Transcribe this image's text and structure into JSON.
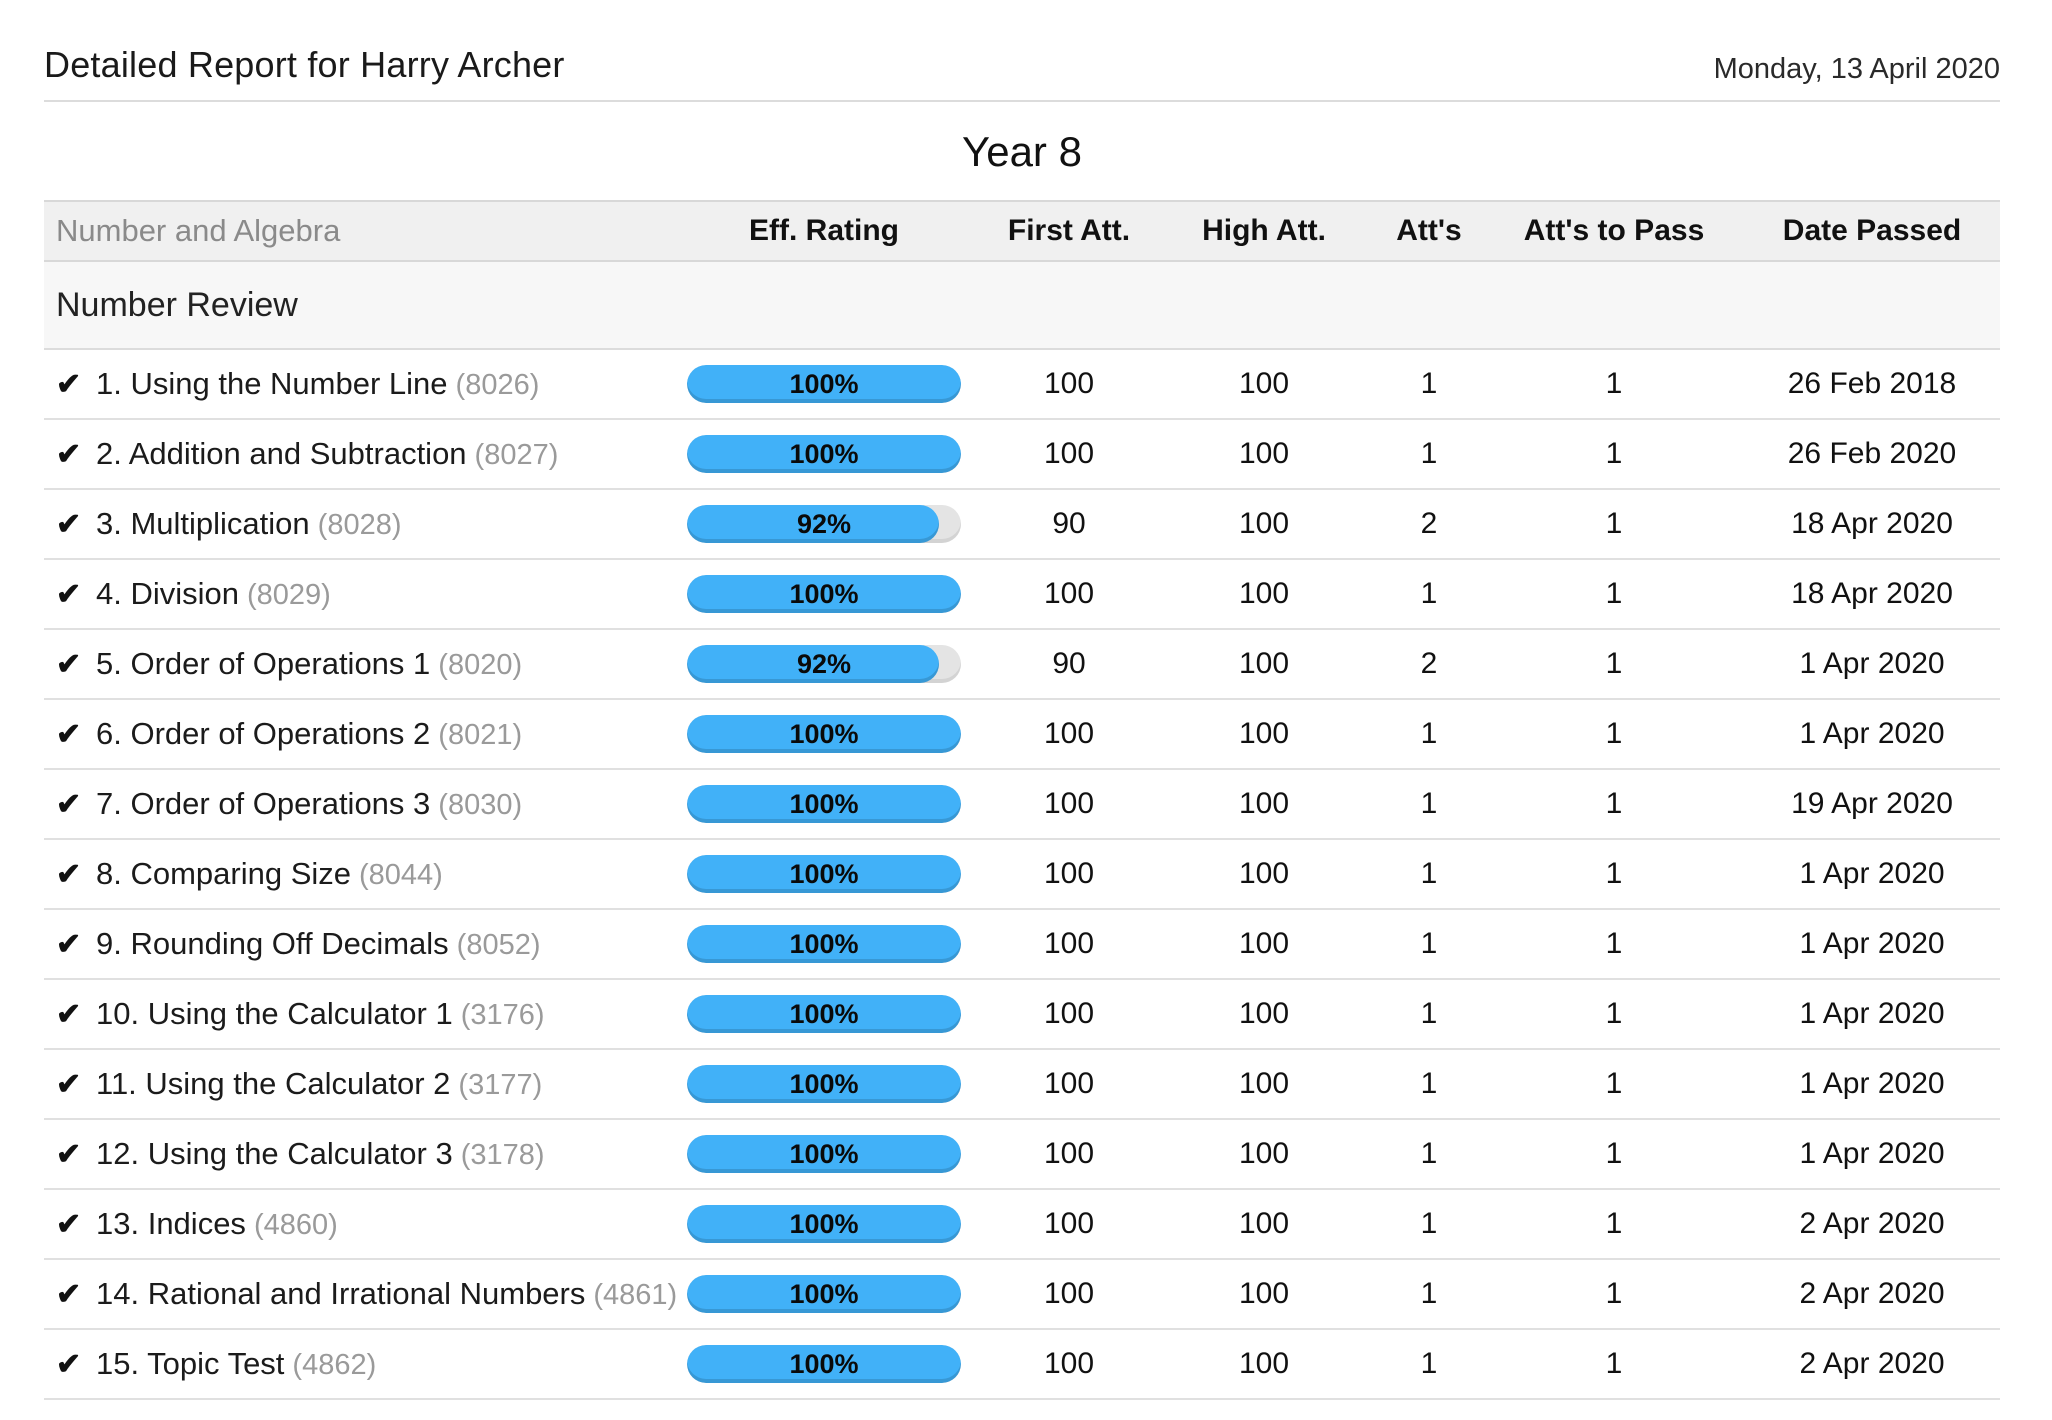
{
  "page": {
    "title": "Detailed Report for Harry Archer",
    "date": "Monday, 13 April 2020",
    "year_heading": "Year 8"
  },
  "icons": {
    "passed_check": "✔"
  },
  "colors": {
    "bar_fill": "#41b1f8",
    "bar_track": "#e4e4e4",
    "header_band": "#f0f0f0"
  },
  "table": {
    "category": "Number and Algebra",
    "columns": [
      "Eff. Rating",
      "First Att.",
      "High Att.",
      "Att's",
      "Att's to Pass",
      "Date Passed"
    ],
    "section": "Number Review",
    "rows": [
      {
        "label": "1. Using the Number Line",
        "code": "(8026)",
        "rating": 100,
        "rating_label": "100%",
        "first_att": "100",
        "high_att": "100",
        "atts": "1",
        "atts_to_pass": "1",
        "date_passed": "26 Feb 2018"
      },
      {
        "label": "2. Addition and Subtraction",
        "code": "(8027)",
        "rating": 100,
        "rating_label": "100%",
        "first_att": "100",
        "high_att": "100",
        "atts": "1",
        "atts_to_pass": "1",
        "date_passed": "26 Feb 2020"
      },
      {
        "label": "3. Multiplication",
        "code": "(8028)",
        "rating": 92,
        "rating_label": "92%",
        "first_att": "90",
        "high_att": "100",
        "atts": "2",
        "atts_to_pass": "1",
        "date_passed": "18 Apr 2020"
      },
      {
        "label": "4. Division",
        "code": "(8029)",
        "rating": 100,
        "rating_label": "100%",
        "first_att": "100",
        "high_att": "100",
        "atts": "1",
        "atts_to_pass": "1",
        "date_passed": "18 Apr 2020"
      },
      {
        "label": "5. Order of Operations 1",
        "code": "(8020)",
        "rating": 92,
        "rating_label": "92%",
        "first_att": "90",
        "high_att": "100",
        "atts": "2",
        "atts_to_pass": "1",
        "date_passed": "1 Apr 2020"
      },
      {
        "label": "6. Order of Operations 2",
        "code": "(8021)",
        "rating": 100,
        "rating_label": "100%",
        "first_att": "100",
        "high_att": "100",
        "atts": "1",
        "atts_to_pass": "1",
        "date_passed": "1 Apr 2020"
      },
      {
        "label": "7. Order of Operations 3",
        "code": "(8030)",
        "rating": 100,
        "rating_label": "100%",
        "first_att": "100",
        "high_att": "100",
        "atts": "1",
        "atts_to_pass": "1",
        "date_passed": "19 Apr 2020"
      },
      {
        "label": "8. Comparing Size",
        "code": "(8044)",
        "rating": 100,
        "rating_label": "100%",
        "first_att": "100",
        "high_att": "100",
        "atts": "1",
        "atts_to_pass": "1",
        "date_passed": "1 Apr 2020"
      },
      {
        "label": "9. Rounding Off Decimals",
        "code": "(8052)",
        "rating": 100,
        "rating_label": "100%",
        "first_att": "100",
        "high_att": "100",
        "atts": "1",
        "atts_to_pass": "1",
        "date_passed": "1 Apr 2020"
      },
      {
        "label": "10. Using the Calculator 1",
        "code": "(3176)",
        "rating": 100,
        "rating_label": "100%",
        "first_att": "100",
        "high_att": "100",
        "atts": "1",
        "atts_to_pass": "1",
        "date_passed": "1 Apr 2020"
      },
      {
        "label": "11. Using the Calculator 2",
        "code": "(3177)",
        "rating": 100,
        "rating_label": "100%",
        "first_att": "100",
        "high_att": "100",
        "atts": "1",
        "atts_to_pass": "1",
        "date_passed": "1 Apr 2020"
      },
      {
        "label": "12. Using the Calculator 3",
        "code": "(3178)",
        "rating": 100,
        "rating_label": "100%",
        "first_att": "100",
        "high_att": "100",
        "atts": "1",
        "atts_to_pass": "1",
        "date_passed": "1 Apr 2020"
      },
      {
        "label": "13. Indices",
        "code": "(4860)",
        "rating": 100,
        "rating_label": "100%",
        "first_att": "100",
        "high_att": "100",
        "atts": "1",
        "atts_to_pass": "1",
        "date_passed": "2 Apr 2020"
      },
      {
        "label": "14. Rational and Irrational Numbers",
        "code": "(4861)",
        "rating": 100,
        "rating_label": "100%",
        "first_att": "100",
        "high_att": "100",
        "atts": "1",
        "atts_to_pass": "1",
        "date_passed": "2 Apr 2020"
      },
      {
        "label": "15. Topic Test",
        "code": "(4862)",
        "rating": 100,
        "rating_label": "100%",
        "first_att": "100",
        "high_att": "100",
        "atts": "1",
        "atts_to_pass": "1",
        "date_passed": "2 Apr 2020"
      }
    ]
  }
}
